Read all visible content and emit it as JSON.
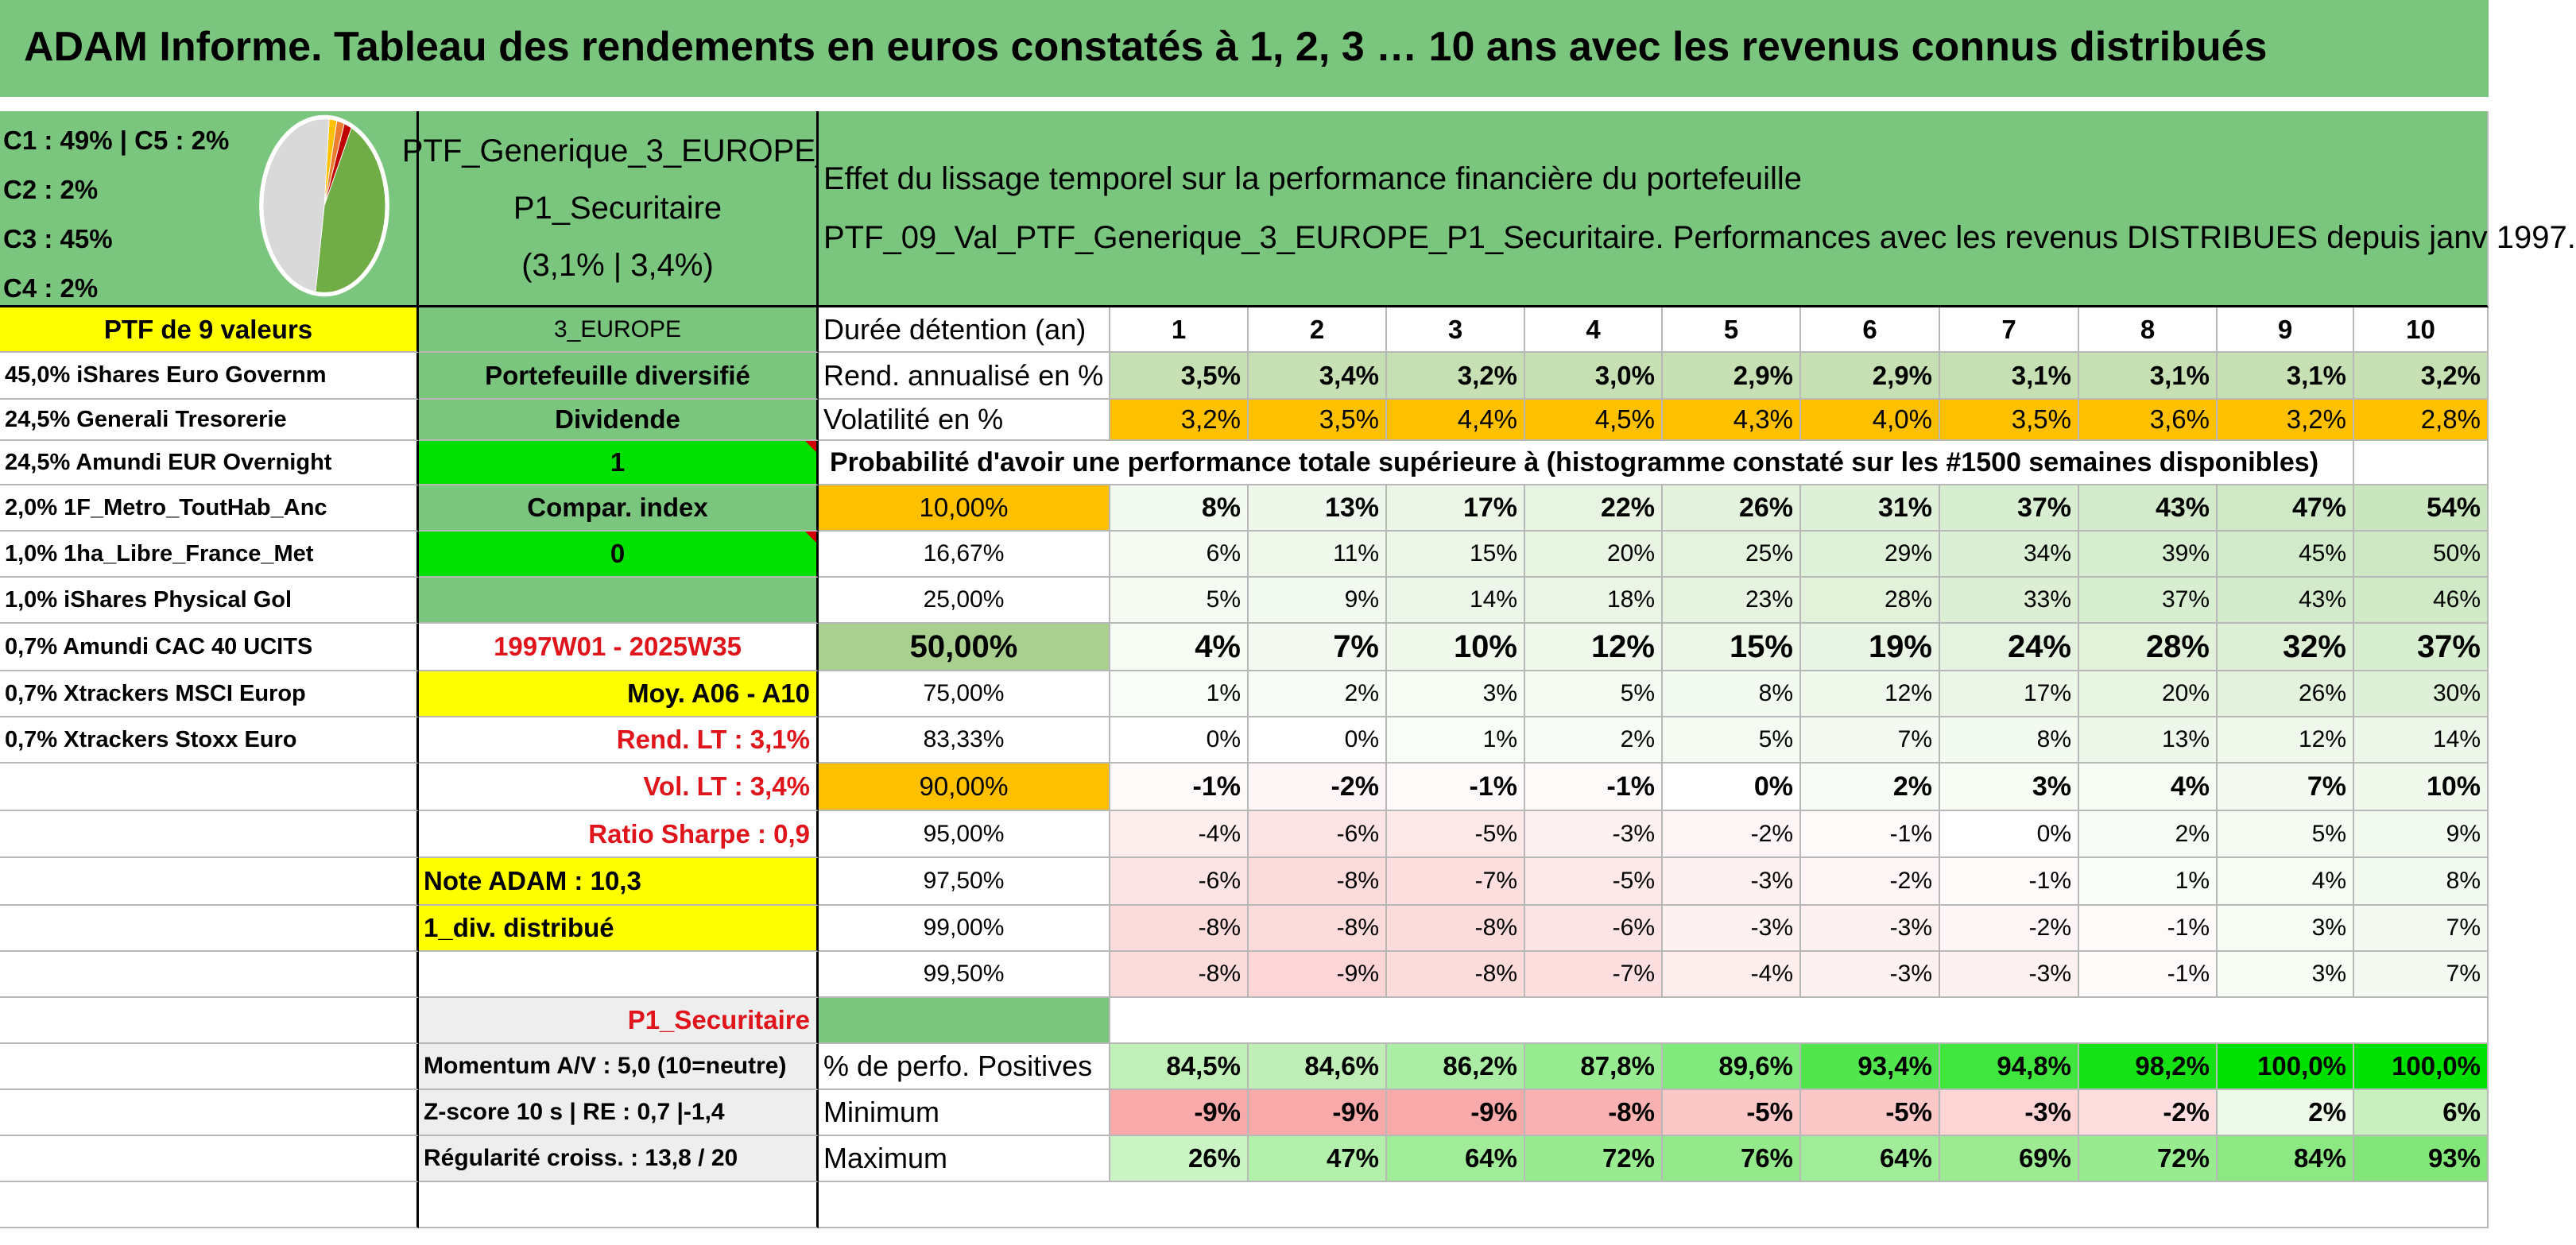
{
  "title": "ADAM Informe. Tableau des rendements en euros constatés à 1, 2, 3 … 10 ans avec les revenus connus distribués",
  "allocation": {
    "lines": [
      "C1 : 49% | C5 : 2%",
      "C2 : 2%",
      "C3 : 45%",
      "C4 : 2%"
    ],
    "pie": [
      {
        "label": "C1",
        "pct": 49,
        "color": "#d9d9d9"
      },
      {
        "label": "C2",
        "pct": 2,
        "color": "#c00000"
      },
      {
        "label": "C3",
        "pct": 45,
        "color": "#70ad47"
      },
      {
        "label": "C4",
        "pct": 2,
        "color": "#ffc000"
      },
      {
        "label": "C5",
        "pct": 2,
        "color": "#ed7d31"
      }
    ]
  },
  "portfolio": {
    "name_line1": "PTF_Generique_3_EUROPE_",
    "name_line2": "P1_Securitaire",
    "name_line3": "(3,1% | 3,4%)"
  },
  "header_desc": {
    "line1": "Effet du lissage temporel sur la performance financière du portefeuille",
    "line2": "PTF_09_Val_PTF_Generique_3_EUROPE_P1_Securitaire. Performances avec les revenus DISTRIBUES depuis janv 1997."
  },
  "left_col": {
    "header": "PTF de 9 valeurs",
    "holdings": [
      "45,0% iShares Euro Governm",
      "24,5% Generali Tresorerie",
      "24,5% Amundi EUR Overnight",
      "2,0% 1F_Metro_ToutHab_Anc",
      "1,0% 1ha_Libre_France_Met",
      "1,0% iShares Physical Gol",
      "0,7% Amundi CAC 40 UCITS",
      "0,7% Xtrackers MSCI Europ",
      "0,7% Xtrackers Stoxx Euro"
    ]
  },
  "mid_col": {
    "zone": "3_EUROPE",
    "type": "Portefeuille diversifié",
    "dividende_label": "Dividende",
    "dividende_value": "1",
    "compar_label": "Compar. index",
    "compar_value": "0",
    "period": "1997W01 - 2025W35",
    "moy": "Moy. A06 - A10",
    "rend_lt": "Rend. LT : 3,1%",
    "vol_lt": "Vol. LT : 3,4%",
    "sharpe": "Ratio Sharpe : 0,9",
    "note": "Note ADAM : 10,3",
    "div": "1_div. distribué",
    "profile": "P1_Securitaire",
    "momentum": "Momentum A/V : 5,0 (10=neutre)",
    "zscore": "Z-score 10 s | RE : 0,7 |-1,4",
    "regularite": "Régularité croiss. : 13,8 / 20"
  },
  "table": {
    "duree_label": "Durée détention (an)",
    "years": [
      "1",
      "2",
      "3",
      "4",
      "5",
      "6",
      "7",
      "8",
      "9",
      "10"
    ],
    "rend_label": "Rend. annualisé en %",
    "rend": [
      "3,5%",
      "3,4%",
      "3,2%",
      "3,0%",
      "2,9%",
      "2,9%",
      "3,1%",
      "3,1%",
      "3,1%",
      "3,2%"
    ],
    "vol_label": "Volatilité en %",
    "vol": [
      "3,2%",
      "3,5%",
      "4,4%",
      "4,5%",
      "4,3%",
      "4,0%",
      "3,5%",
      "3,6%",
      "3,2%",
      "2,8%"
    ],
    "prob_label": "Probabilité d'avoir une performance totale supérieure à (histogramme constaté sur les #1500 semaines disponibles)",
    "prob_rows": [
      {
        "pct": "10,00%",
        "values": [
          "8%",
          "13%",
          "17%",
          "22%",
          "26%",
          "31%",
          "37%",
          "43%",
          "47%",
          "54%"
        ]
      },
      {
        "pct": "16,67%",
        "values": [
          "6%",
          "11%",
          "15%",
          "20%",
          "25%",
          "29%",
          "34%",
          "39%",
          "45%",
          "50%"
        ]
      },
      {
        "pct": "25,00%",
        "values": [
          "5%",
          "9%",
          "14%",
          "18%",
          "23%",
          "28%",
          "33%",
          "37%",
          "43%",
          "46%"
        ]
      },
      {
        "pct": "50,00%",
        "values": [
          "4%",
          "7%",
          "10%",
          "12%",
          "15%",
          "19%",
          "24%",
          "28%",
          "32%",
          "37%"
        ]
      },
      {
        "pct": "75,00%",
        "values": [
          "1%",
          "2%",
          "3%",
          "5%",
          "8%",
          "12%",
          "17%",
          "20%",
          "26%",
          "30%"
        ]
      },
      {
        "pct": "83,33%",
        "values": [
          "0%",
          "0%",
          "1%",
          "2%",
          "5%",
          "7%",
          "8%",
          "13%",
          "12%",
          "14%"
        ]
      },
      {
        "pct": "90,00%",
        "values": [
          "-1%",
          "-2%",
          "-1%",
          "-1%",
          "0%",
          "2%",
          "3%",
          "4%",
          "7%",
          "10%"
        ]
      },
      {
        "pct": "95,00%",
        "values": [
          "-4%",
          "-6%",
          "-5%",
          "-3%",
          "-2%",
          "-1%",
          "0%",
          "2%",
          "5%",
          "9%"
        ]
      },
      {
        "pct": "97,50%",
        "values": [
          "-6%",
          "-8%",
          "-7%",
          "-5%",
          "-3%",
          "-2%",
          "-1%",
          "1%",
          "4%",
          "8%"
        ]
      },
      {
        "pct": "99,00%",
        "values": [
          "-8%",
          "-8%",
          "-8%",
          "-6%",
          "-3%",
          "-3%",
          "-2%",
          "-1%",
          "3%",
          "7%"
        ]
      },
      {
        "pct": "99,50%",
        "values": [
          "-8%",
          "-9%",
          "-8%",
          "-7%",
          "-4%",
          "-3%",
          "-3%",
          "-1%",
          "3%",
          "7%"
        ]
      }
    ],
    "pos_label": "% de perfo. Positives",
    "pos": [
      "84,5%",
      "84,6%",
      "86,2%",
      "87,8%",
      "89,6%",
      "93,4%",
      "94,8%",
      "98,2%",
      "100,0%",
      "100,0%"
    ],
    "min_label": "Minimum",
    "min": [
      "-9%",
      "-9%",
      "-9%",
      "-8%",
      "-5%",
      "-5%",
      "-3%",
      "-2%",
      "2%",
      "6%"
    ],
    "max_label": "Maximum",
    "max": [
      "26%",
      "47%",
      "64%",
      "72%",
      "76%",
      "64%",
      "69%",
      "72%",
      "84%",
      "93%"
    ]
  }
}
